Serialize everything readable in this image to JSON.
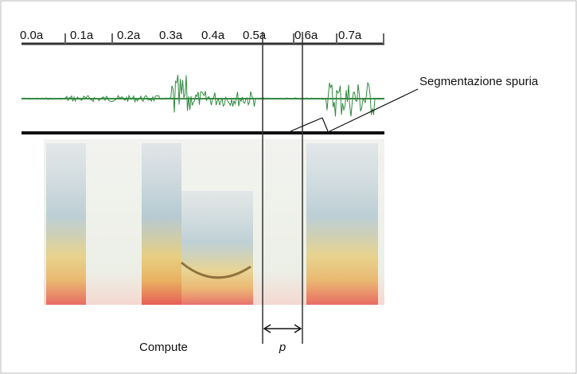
{
  "axis": {
    "labels": [
      "0.0a",
      "0.1a",
      "0.2a",
      "0.3a",
      "0.4a",
      "0.5a",
      "0.6a",
      "0.7a"
    ]
  },
  "annotation": "Segmentazione spuria",
  "caption": "Compute",
  "marker": "p"
}
